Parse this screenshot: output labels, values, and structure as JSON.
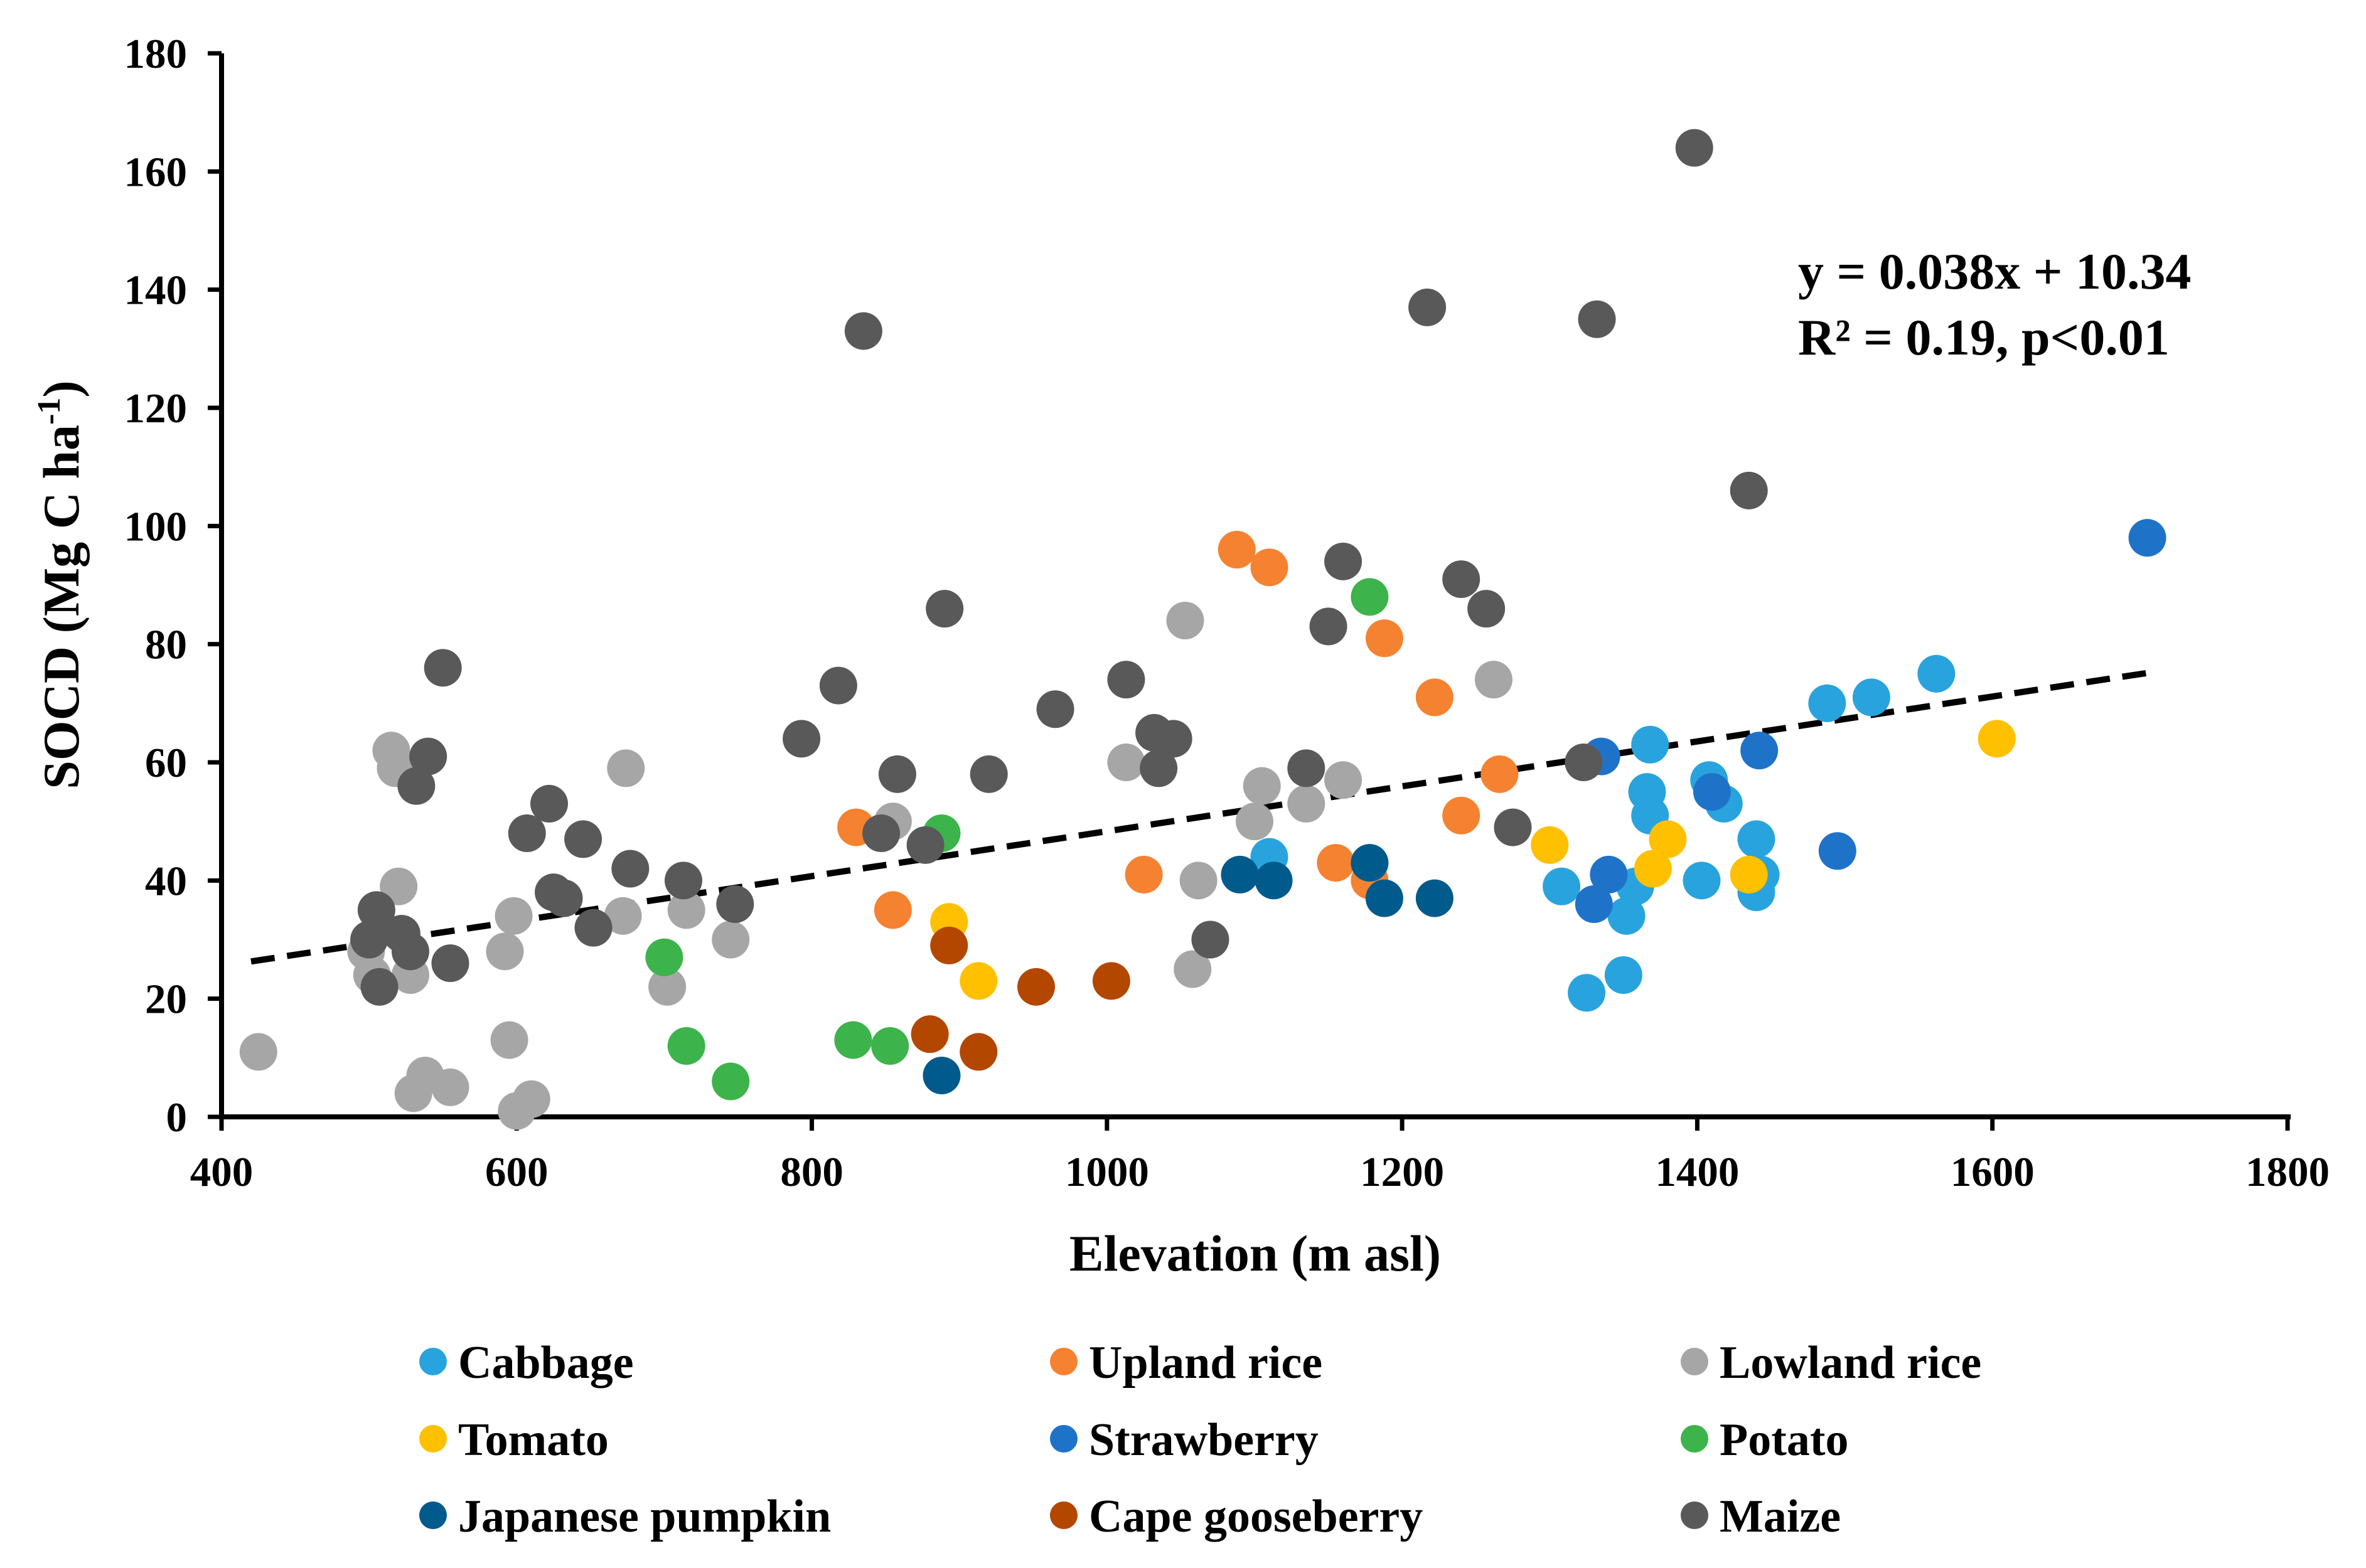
{
  "chart_data": {
    "type": "scatter",
    "title": "",
    "xlabel": "Elevation (m asl)",
    "ylabel": "SOCD (Mg C ha",
    "ylabel_sup": "-1",
    "ylabel_end": ")",
    "xlim": [
      400,
      1800
    ],
    "ylim": [
      0,
      180
    ],
    "xticks": [
      400,
      600,
      800,
      1000,
      1200,
      1400,
      1600,
      1800
    ],
    "yticks": [
      0,
      20,
      40,
      60,
      80,
      100,
      120,
      140,
      160,
      180
    ],
    "grid": false,
    "legend_position": "bottom",
    "trendline": {
      "slope": 0.038,
      "intercept": 10.34,
      "x_range": [
        420,
        1705
      ],
      "style": "dashed",
      "color": "#000000"
    },
    "annotation": {
      "equation": "y = 0.038x + 10.34",
      "stats": "R² = 0.19, p<0.01"
    },
    "series": [
      {
        "name": "Cabbage",
        "color": "#29A3DD",
        "points": [
          [
            1110,
            44
          ],
          [
            1308,
            39
          ],
          [
            1325,
            21
          ],
          [
            1350,
            24
          ],
          [
            1352,
            34
          ],
          [
            1358,
            39
          ],
          [
            1366,
            55
          ],
          [
            1368,
            63
          ],
          [
            1368,
            51
          ],
          [
            1403,
            40
          ],
          [
            1408,
            57
          ],
          [
            1418,
            53
          ],
          [
            1440,
            47
          ],
          [
            1440,
            38
          ],
          [
            1443,
            41
          ],
          [
            1488,
            70
          ],
          [
            1518,
            71
          ],
          [
            1562,
            75
          ]
        ]
      },
      {
        "name": "Upland rice",
        "color": "#F58231",
        "points": [
          [
            830,
            49
          ],
          [
            855,
            35
          ],
          [
            1025,
            41
          ],
          [
            1088,
            96
          ],
          [
            1110,
            93
          ],
          [
            1155,
            43
          ],
          [
            1178,
            40
          ],
          [
            1188,
            81
          ],
          [
            1222,
            71
          ],
          [
            1240,
            51
          ],
          [
            1266,
            58
          ]
        ]
      },
      {
        "name": "Lowland rice",
        "color": "#A6A6A6",
        "points": [
          [
            425,
            11
          ],
          [
            498,
            28
          ],
          [
            502,
            24
          ],
          [
            515,
            62
          ],
          [
            518,
            59
          ],
          [
            520,
            39
          ],
          [
            528,
            24
          ],
          [
            530,
            4
          ],
          [
            538,
            7
          ],
          [
            555,
            5
          ],
          [
            592,
            28
          ],
          [
            595,
            13
          ],
          [
            598,
            34
          ],
          [
            600,
            1
          ],
          [
            610,
            3
          ],
          [
            672,
            34
          ],
          [
            674,
            59
          ],
          [
            702,
            22
          ],
          [
            715,
            35
          ],
          [
            745,
            30
          ],
          [
            855,
            50
          ],
          [
            1013,
            60
          ],
          [
            1053,
            84
          ],
          [
            1062,
            40
          ],
          [
            1058,
            25
          ],
          [
            1100,
            50
          ],
          [
            1105,
            56
          ],
          [
            1135,
            53
          ],
          [
            1160,
            57
          ],
          [
            1262,
            74
          ]
        ]
      },
      {
        "name": "Tomato",
        "color": "#FFC000",
        "points": [
          [
            893,
            33
          ],
          [
            913,
            23
          ],
          [
            1300,
            46
          ],
          [
            1370,
            42
          ],
          [
            1380,
            47
          ],
          [
            1435,
            41
          ],
          [
            1603,
            64
          ]
        ]
      },
      {
        "name": "Strawberry",
        "color": "#1E73C8",
        "points": [
          [
            1330,
            36
          ],
          [
            1335,
            61
          ],
          [
            1340,
            41
          ],
          [
            1410,
            55
          ],
          [
            1442,
            62
          ],
          [
            1495,
            45
          ],
          [
            1705,
            98
          ]
        ]
      },
      {
        "name": "Potato",
        "color": "#3CB44B",
        "points": [
          [
            700,
            27
          ],
          [
            715,
            12
          ],
          [
            745,
            6
          ],
          [
            828,
            13
          ],
          [
            853,
            12
          ],
          [
            888,
            48
          ],
          [
            1178,
            88
          ]
        ]
      },
      {
        "name": "Japanese pumpkin",
        "color": "#005A8C",
        "points": [
          [
            888,
            7
          ],
          [
            1090,
            41
          ],
          [
            1113,
            40
          ],
          [
            1178,
            43
          ],
          [
            1188,
            37
          ],
          [
            1222,
            37
          ]
        ]
      },
      {
        "name": "Cape gooseberry",
        "color": "#B34700",
        "points": [
          [
            880,
            14
          ],
          [
            893,
            29
          ],
          [
            913,
            11
          ],
          [
            952,
            22
          ],
          [
            1003,
            23
          ]
        ]
      },
      {
        "name": "Maize",
        "color": "#595959",
        "points": [
          [
            500,
            30
          ],
          [
            505,
            35
          ],
          [
            507,
            22
          ],
          [
            522,
            31
          ],
          [
            528,
            28
          ],
          [
            532,
            56
          ],
          [
            540,
            61
          ],
          [
            550,
            76
          ],
          [
            555,
            26
          ],
          [
            607,
            48
          ],
          [
            622,
            53
          ],
          [
            625,
            38
          ],
          [
            632,
            37
          ],
          [
            645,
            47
          ],
          [
            652,
            32
          ],
          [
            677,
            42
          ],
          [
            713,
            40
          ],
          [
            748,
            36
          ],
          [
            793,
            64
          ],
          [
            818,
            73
          ],
          [
            835,
            133
          ],
          [
            847,
            48
          ],
          [
            858,
            58
          ],
          [
            877,
            46
          ],
          [
            890,
            86
          ],
          [
            920,
            58
          ],
          [
            965,
            69
          ],
          [
            1013,
            74
          ],
          [
            1032,
            65
          ],
          [
            1035,
            59
          ],
          [
            1045,
            64
          ],
          [
            1070,
            30
          ],
          [
            1135,
            59
          ],
          [
            1150,
            83
          ],
          [
            1160,
            94
          ],
          [
            1217,
            137
          ],
          [
            1240,
            91
          ],
          [
            1257,
            86
          ],
          [
            1275,
            49
          ],
          [
            1323,
            60
          ],
          [
            1332,
            135
          ],
          [
            1398,
            164
          ],
          [
            1435,
            106
          ]
        ]
      }
    ]
  }
}
